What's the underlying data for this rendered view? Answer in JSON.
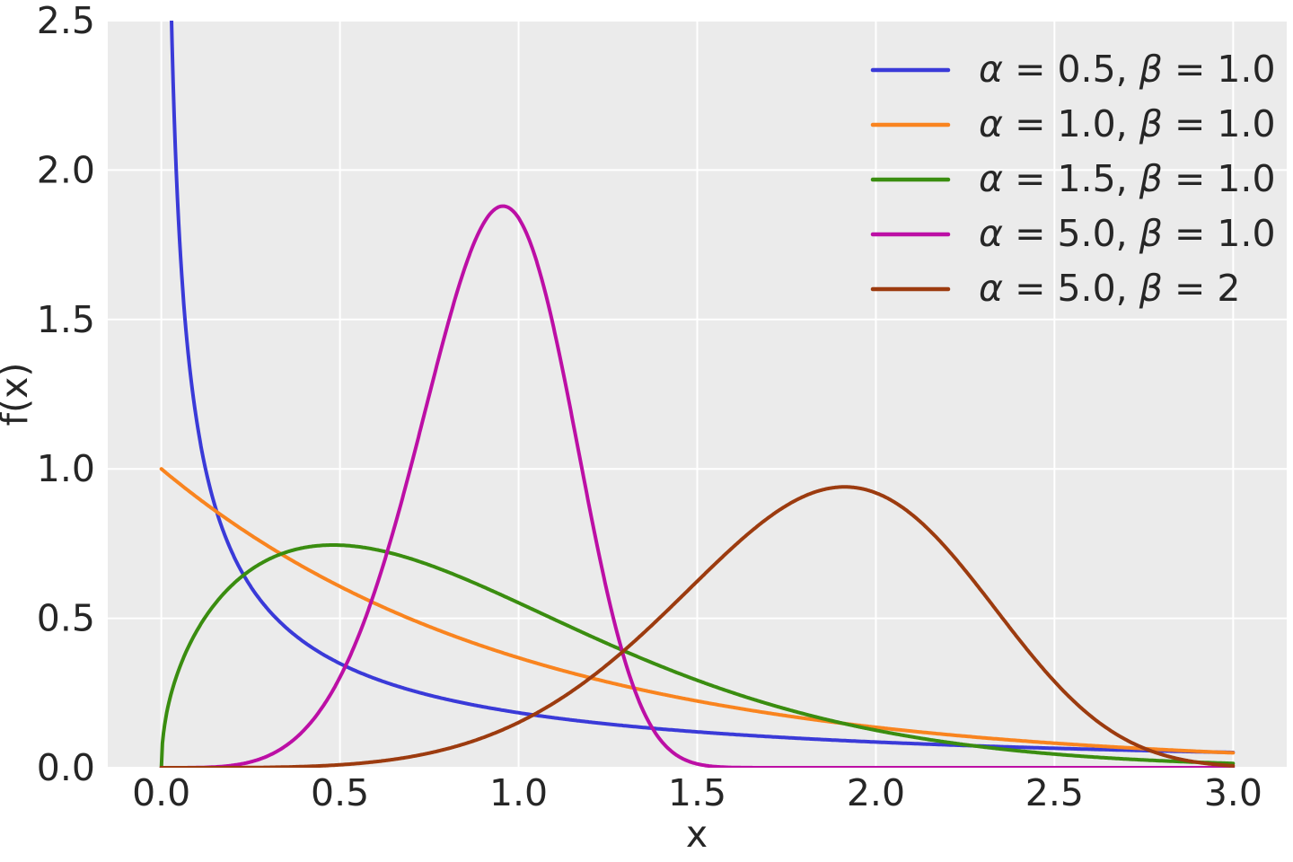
{
  "style": {
    "figure_background": "#ffffff",
    "axes_background": "#ebebeb",
    "grid_color": "#ffffff",
    "text_color": "#262626"
  },
  "chart_data": {
    "type": "line",
    "title": "",
    "xlabel": "x",
    "ylabel": "f(x)",
    "xlim": [
      -0.15,
      3.15
    ],
    "ylim": [
      0,
      2.5
    ],
    "x_ticks": {
      "values": [
        0,
        0.5,
        1,
        1.5,
        2,
        2.5,
        3
      ],
      "labels": [
        "0.0",
        "0.5",
        "1.0",
        "1.5",
        "2.0",
        "2.5",
        "3.0"
      ]
    },
    "y_ticks": {
      "values": [
        0,
        0.5,
        1,
        1.5,
        2,
        2.5
      ],
      "labels": [
        "0.0",
        "0.5",
        "1.0",
        "1.5",
        "2.0",
        "2.5"
      ]
    },
    "grid": true,
    "legend_position": "upper right",
    "curve_model": "Weibull PDF: f(x) = (alpha/beta)*(x/beta)^(alpha-1)*exp(-(x/beta)^alpha), plotted for x in [0,3]",
    "x_range": [
      0,
      3
    ],
    "series": [
      {
        "label": "α = 0.5, β = 1.0",
        "alpha": 0.5,
        "beta": 1.0,
        "color": "#3a3ad8",
        "shape_note": "diverges as x→0, clipped at y=2.5 near x≈0.03, decays to ≈0.05 at x=3"
      },
      {
        "label": "α = 1.0, β = 1.0",
        "alpha": 1.0,
        "beta": 1.0,
        "color": "#f9841f",
        "shape_note": "f(0)=1.0, exponential decay to ≈0.05 at x=3"
      },
      {
        "label": "α = 1.5, β = 1.0",
        "alpha": 1.5,
        "beta": 1.0,
        "color": "#3a8d10",
        "shape_note": "rises steeply from (0,0), max ≈0.74 at x≈0.48"
      },
      {
        "label": "α = 5.0, β = 1.0",
        "alpha": 5.0,
        "beta": 1.0,
        "color": "#bc0fa5",
        "shape_note": "max ≈1.88 at x≈0.96, ≈0 beyond x≈1.6"
      },
      {
        "label": "α = 5.0, β = 2",
        "alpha": 5.0,
        "beta": 2.0,
        "color": "#9c3b0f",
        "shape_note": "max ≈0.94 at x≈1.91"
      }
    ]
  }
}
